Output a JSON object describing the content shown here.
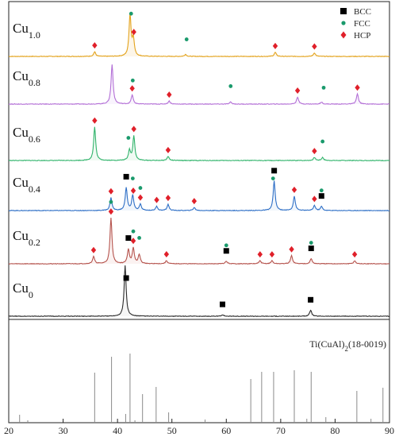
{
  "chart_data": {
    "type": "line",
    "title": "",
    "xlabel": "",
    "ylabel": "",
    "xlim": [
      20,
      90
    ],
    "xticks": [
      20,
      30,
      40,
      50,
      60,
      70,
      80,
      90
    ],
    "grid": false,
    "legend": {
      "placement": "top-right",
      "entries": [
        {
          "label": "BCC",
          "marker": "square",
          "color": "#000000"
        },
        {
          "label": "FCC",
          "marker": "circle",
          "color": "#1a9a6c"
        },
        {
          "label": "HCP",
          "marker": "diamond",
          "color": "#e0202a"
        }
      ]
    },
    "series": [
      {
        "name": "Cu1.0",
        "label_main": "Cu",
        "label_sub": "1.0",
        "color": "#e3a21a",
        "fill": "#fbeccf",
        "peaks": [
          [
            35.8,
            0.09
          ],
          [
            42.3,
            0.82
          ],
          [
            42.9,
            0.34
          ],
          [
            52.5,
            0.04
          ],
          [
            69.0,
            0.08
          ],
          [
            76.2,
            0.07
          ]
        ],
        "markers": [
          {
            "x": 42.5,
            "type": "FCC"
          },
          {
            "x": 52.7,
            "type": "FCC"
          },
          {
            "x": 35.8,
            "type": "HCP"
          },
          {
            "x": 43.0,
            "type": "HCP"
          },
          {
            "x": 69.0,
            "type": "HCP"
          },
          {
            "x": 76.2,
            "type": "HCP"
          }
        ]
      },
      {
        "name": "Cu0.8",
        "label_main": "Cu",
        "label_sub": "0.8",
        "color": "#b36fd6",
        "fill": "#f2e6fa",
        "peaks": [
          [
            39.0,
            0.78
          ],
          [
            42.7,
            0.18
          ],
          [
            49.5,
            0.06
          ],
          [
            60.8,
            0.04
          ],
          [
            73.1,
            0.14
          ],
          [
            77.5,
            0.04
          ],
          [
            84.1,
            0.2
          ]
        ],
        "markers": [
          {
            "x": 42.8,
            "type": "FCC"
          },
          {
            "x": 60.8,
            "type": "FCC"
          },
          {
            "x": 77.9,
            "type": "FCC"
          },
          {
            "x": 42.7,
            "type": "HCP"
          },
          {
            "x": 49.5,
            "type": "HCP"
          },
          {
            "x": 73.1,
            "type": "HCP"
          },
          {
            "x": 84.1,
            "type": "HCP"
          }
        ]
      },
      {
        "name": "Cu0.6",
        "label_main": "Cu",
        "label_sub": "0.6",
        "color": "#2fb36a",
        "fill": "#ddf3e5",
        "peaks": [
          [
            35.8,
            0.66
          ],
          [
            42.2,
            0.2
          ],
          [
            43.0,
            0.48
          ],
          [
            49.3,
            0.08
          ],
          [
            76.2,
            0.06
          ],
          [
            77.7,
            0.06
          ]
        ],
        "markers": [
          {
            "x": 42.0,
            "type": "FCC"
          },
          {
            "x": 77.7,
            "type": "FCC"
          },
          {
            "x": 35.8,
            "type": "HCP"
          },
          {
            "x": 43.0,
            "type": "HCP"
          },
          {
            "x": 49.3,
            "type": "HCP"
          },
          {
            "x": 76.2,
            "type": "HCP"
          }
        ]
      },
      {
        "name": "Cu0.4",
        "label_main": "Cu",
        "label_sub": "0.4",
        "color": "#2e6fc6",
        "fill": "#dfeaf8",
        "peaks": [
          [
            38.8,
            0.25
          ],
          [
            41.6,
            0.45
          ],
          [
            42.8,
            0.3
          ],
          [
            44.2,
            0.12
          ],
          [
            47.2,
            0.08
          ],
          [
            49.3,
            0.12
          ],
          [
            54.1,
            0.06
          ],
          [
            68.8,
            0.58
          ],
          [
            72.5,
            0.28
          ],
          [
            76.2,
            0.1
          ],
          [
            77.5,
            0.08
          ]
        ],
        "markers": [
          {
            "x": 41.6,
            "type": "BCC"
          },
          {
            "x": 68.8,
            "type": "BCC"
          },
          {
            "x": 77.5,
            "type": "BCC"
          },
          {
            "x": 42.8,
            "type": "FCC"
          },
          {
            "x": 44.2,
            "type": "FCC"
          },
          {
            "x": 68.6,
            "type": "FCC"
          },
          {
            "x": 77.5,
            "type": "FCC"
          },
          {
            "x": 38.8,
            "type": "HCP"
          },
          {
            "x": 42.9,
            "type": "HCP"
          },
          {
            "x": 44.2,
            "type": "HCP"
          },
          {
            "x": 47.2,
            "type": "HCP"
          },
          {
            "x": 49.3,
            "type": "HCP"
          },
          {
            "x": 54.1,
            "type": "HCP"
          },
          {
            "x": 72.5,
            "type": "HCP"
          },
          {
            "x": 76.2,
            "type": "HCP"
          }
        ]
      },
      {
        "name": "Cu0.2",
        "label_main": "Cu",
        "label_sub": "0.2",
        "color": "#b5534d",
        "fill": "#f6e2df",
        "peaks": [
          [
            35.6,
            0.14
          ],
          [
            38.8,
            0.9
          ],
          [
            42.0,
            0.28
          ],
          [
            42.9,
            0.3
          ],
          [
            44.0,
            0.18
          ],
          [
            49.0,
            0.06
          ],
          [
            60.0,
            0.05
          ],
          [
            66.2,
            0.06
          ],
          [
            68.4,
            0.06
          ],
          [
            72.0,
            0.16
          ],
          [
            75.6,
            0.1
          ],
          [
            83.6,
            0.06
          ]
        ],
        "markers": [
          {
            "x": 42.0,
            "type": "BCC"
          },
          {
            "x": 60.0,
            "type": "BCC"
          },
          {
            "x": 75.6,
            "type": "BCC"
          },
          {
            "x": 38.8,
            "type": "FCC"
          },
          {
            "x": 42.9,
            "type": "FCC"
          },
          {
            "x": 44.0,
            "type": "FCC"
          },
          {
            "x": 60.0,
            "type": "FCC"
          },
          {
            "x": 75.6,
            "type": "FCC"
          },
          {
            "x": 35.6,
            "type": "HCP"
          },
          {
            "x": 38.8,
            "type": "HCP"
          },
          {
            "x": 42.9,
            "type": "HCP"
          },
          {
            "x": 49.0,
            "type": "HCP"
          },
          {
            "x": 66.2,
            "type": "HCP"
          },
          {
            "x": 68.4,
            "type": "HCP"
          },
          {
            "x": 72.0,
            "type": "HCP"
          },
          {
            "x": 83.6,
            "type": "HCP"
          }
        ]
      },
      {
        "name": "Cu0",
        "label_main": "Cu",
        "label_sub": "0",
        "color": "#2b2b2b",
        "fill": "#ececec",
        "peaks": [
          [
            41.4,
            1.0
          ],
          [
            59.3,
            0.03
          ],
          [
            75.5,
            0.12
          ]
        ],
        "markers": [
          {
            "x": 41.6,
            "type": "BCC"
          },
          {
            "x": 59.3,
            "type": "BCC"
          },
          {
            "x": 75.5,
            "type": "BCC"
          }
        ]
      }
    ],
    "reference": {
      "label_pre": "Ti(CuAl)",
      "label_sub": "2",
      "label_post": "(18-0019)",
      "lines": [
        [
          22.0,
          0.1
        ],
        [
          23.5,
          0.03
        ],
        [
          35.8,
          0.63
        ],
        [
          38.9,
          0.83
        ],
        [
          41.5,
          0.11
        ],
        [
          42.3,
          0.87
        ],
        [
          43.2,
          0.03
        ],
        [
          44.6,
          0.36
        ],
        [
          47.1,
          0.45
        ],
        [
          49.4,
          0.13
        ],
        [
          56.1,
          0.04
        ],
        [
          64.5,
          0.55
        ],
        [
          66.5,
          0.64
        ],
        [
          68.7,
          0.64
        ],
        [
          72.5,
          0.66
        ],
        [
          74.8,
          0.05
        ],
        [
          75.6,
          0.64
        ],
        [
          78.3,
          0.07
        ],
        [
          84.0,
          0.4
        ],
        [
          86.6,
          0.05
        ],
        [
          88.8,
          0.44
        ]
      ]
    }
  }
}
